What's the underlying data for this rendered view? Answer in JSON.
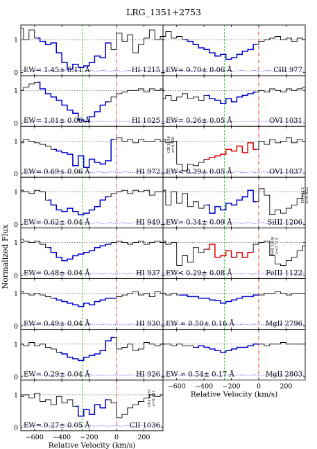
{
  "title": "LRG_1351+2753",
  "ylabel": "Normalized Flux",
  "xlabel": "Relative Velocity (km/s)",
  "chart_data": {
    "type": "line",
    "xlim": [
      -700,
      340
    ],
    "ylim": [
      -0.1,
      1.45
    ],
    "y_ticks": [
      0,
      1
    ],
    "x_ticks": [
      -600,
      -400,
      -200,
      0,
      200
    ],
    "x_tick_labels": [
      "−600",
      "−400",
      "−200",
      "0",
      "200"
    ],
    "reference_lines": [
      {
        "x": -250,
        "style": "green-dashed"
      },
      {
        "x": 0,
        "style": "red-dashdot"
      }
    ],
    "continuum": 1,
    "colors": {
      "spectrum": "#000000",
      "fit": "#0000cc",
      "limit": "#dd0000",
      "error": "#0000ee",
      "green": "#00bb00",
      "red": "#dd0000"
    },
    "panels": [
      {
        "ion": "HI 1215",
        "ew": "EW= 1.45± 0.11 Å",
        "col": 0,
        "row": 0,
        "xlabels": false,
        "x": [
          -700,
          -660,
          -620,
          -580,
          -540,
          -500,
          -460,
          -420,
          -380,
          -340,
          -300,
          -260,
          -220,
          -180,
          -140,
          -100,
          -60,
          -20,
          20,
          60,
          100,
          140,
          180,
          220,
          260,
          300,
          340
        ],
        "flux": [
          1.35,
          1.0,
          1.3,
          1.05,
          0.95,
          0.85,
          0.9,
          0.6,
          0.3,
          0.1,
          0.25,
          0.15,
          0.2,
          0.3,
          0.5,
          0.45,
          0.9,
          0.7,
          1.2,
          0.95,
          1.15,
          0.6,
          0.85,
          1.05,
          1.3,
          1.0,
          1.1
        ],
        "fit": [
          [
            -580,
            -40
          ]
        ],
        "hl": "blue"
      },
      {
        "ion": "HI 1025",
        "ew": "EW= 1.01± 0.06 Å",
        "col": 0,
        "row": 1,
        "xlabels": false,
        "x": [
          -700,
          -660,
          -620,
          -580,
          -540,
          -500,
          -460,
          -420,
          -380,
          -340,
          -300,
          -260,
          -220,
          -180,
          -140,
          -100,
          -60,
          -20,
          20,
          60,
          100,
          140,
          180,
          220,
          260,
          300,
          340
        ],
        "flux": [
          1.0,
          1.1,
          1.2,
          1.25,
          1.05,
          0.9,
          0.8,
          0.7,
          0.55,
          0.4,
          0.3,
          0.1,
          0.05,
          0.2,
          0.35,
          0.55,
          0.65,
          0.8,
          0.9,
          0.95,
          1.0,
          1.0,
          1.05,
          0.95,
          1.05,
          1.0,
          1.05
        ],
        "fit": [
          [
            -580,
            -60
          ]
        ],
        "hl": "blue"
      },
      {
        "ion": "HI 972",
        "ew": "EW= 0.69± 0.06 Å",
        "col": 0,
        "row": 2,
        "xlabels": false,
        "x": [
          -700,
          -660,
          -620,
          -580,
          -540,
          -500,
          -460,
          -420,
          -380,
          -340,
          -300,
          -260,
          -220,
          -180,
          -140,
          -100,
          -60,
          -20,
          20,
          60,
          100,
          140,
          180,
          220,
          260,
          300,
          340
        ],
        "flux": [
          0.95,
          1.05,
          1.0,
          0.95,
          0.9,
          0.85,
          0.75,
          0.7,
          0.65,
          0.6,
          0.25,
          0.55,
          0.2,
          0.45,
          0.35,
          0.3,
          0.4,
          1.05,
          1.1,
          1.0,
          1.05,
          0.95,
          1.05,
          1.0,
          1.0,
          1.05,
          1.0
        ],
        "fit": [
          [
            -460,
            -20
          ]
        ],
        "hl": "blue"
      },
      {
        "ion": "HI 949",
        "ew": "EW= 0.62± 0.04 Å",
        "col": 0,
        "row": 3,
        "xlabels": false,
        "x": [
          -700,
          -660,
          -620,
          -580,
          -540,
          -500,
          -460,
          -420,
          -380,
          -340,
          -300,
          -260,
          -220,
          -180,
          -140,
          -100,
          -60,
          -20,
          20,
          60,
          100,
          140,
          180,
          220,
          260,
          300,
          340
        ],
        "flux": [
          1.05,
          1.0,
          0.95,
          1.05,
          1.0,
          0.75,
          0.6,
          0.45,
          0.4,
          0.5,
          0.4,
          0.3,
          0.35,
          0.45,
          0.55,
          0.75,
          0.85,
          0.95,
          1.0,
          1.05,
          0.95,
          1.05,
          1.0,
          1.05,
          0.9,
          1.0,
          1.0
        ],
        "fit": [
          [
            -500,
            -60
          ]
        ],
        "hl": "blue"
      },
      {
        "ion": "HI 937",
        "ew": "EW= 0.48± 0.04 Å",
        "col": 0,
        "row": 4,
        "xlabels": false,
        "x": [
          -700,
          -660,
          -620,
          -580,
          -540,
          -500,
          -460,
          -420,
          -380,
          -340,
          -300,
          -260,
          -220,
          -180,
          -140,
          -100,
          -60,
          -20,
          20,
          60,
          100,
          140,
          180,
          220,
          260,
          300,
          340
        ],
        "flux": [
          1.1,
          1.05,
          1.0,
          1.05,
          0.95,
          0.85,
          0.7,
          0.55,
          0.45,
          0.5,
          0.6,
          0.65,
          0.7,
          0.75,
          0.85,
          0.9,
          0.95,
          1.0,
          1.05,
          1.0,
          0.95,
          1.0,
          1.05,
          0.95,
          1.0,
          1.05,
          1.0
        ],
        "fit": [
          [
            -500,
            -40
          ]
        ],
        "hl": "blue"
      },
      {
        "ion": "HI 930",
        "ew": "EW= 0.49± 0.04 Å",
        "col": 0,
        "row": 5,
        "xlabels": false,
        "x": [
          -700,
          -660,
          -620,
          -580,
          -540,
          -500,
          -460,
          -420,
          -380,
          -340,
          -300,
          -260,
          -220,
          -180,
          -140,
          -100,
          -60,
          -20,
          20,
          60,
          100,
          140,
          180,
          220,
          260,
          300,
          340
        ],
        "flux": [
          1.05,
          1.0,
          0.95,
          1.0,
          0.95,
          0.9,
          0.85,
          0.8,
          0.75,
          0.7,
          0.65,
          0.6,
          0.7,
          0.65,
          0.75,
          0.8,
          0.85,
          0.85,
          0.9,
          0.95,
          1.0,
          1.05,
          0.95,
          1.0,
          0.9,
          1.05,
          1.0
        ],
        "fit": [
          [
            -460,
            0
          ]
        ],
        "hl": "blue"
      },
      {
        "ion": "HI 926",
        "ew": "EW= 0.29± 0.04 Å",
        "col": 0,
        "row": 6,
        "xlabels": false,
        "x": [
          -700,
          -660,
          -620,
          -580,
          -540,
          -500,
          -460,
          -420,
          -380,
          -340,
          -300,
          -260,
          -220,
          -180,
          -140,
          -100,
          -60,
          -20,
          20,
          60,
          100,
          140,
          180,
          220,
          260,
          300,
          340
        ],
        "flux": [
          1.0,
          0.95,
          1.05,
          0.95,
          1.0,
          0.9,
          0.85,
          0.75,
          0.7,
          0.6,
          0.55,
          0.5,
          0.6,
          0.65,
          0.7,
          0.8,
          1.1,
          1.2,
          0.85,
          0.9,
          1.0,
          0.8,
          0.85,
          1.05,
          1.0,
          0.95,
          1.0
        ],
        "fit": [
          [
            -420,
            -20
          ]
        ],
        "hl": "blue"
      },
      {
        "ion": "CII 1036",
        "ew": "EW= 0.27± 0.05 Å",
        "col": 0,
        "row": 7,
        "xlabels": true,
        "x": [
          -700,
          -660,
          -620,
          -580,
          -540,
          -500,
          -460,
          -420,
          -380,
          -340,
          -300,
          -260,
          -220,
          -180,
          -140,
          -100,
          -60,
          -20,
          20,
          60,
          100,
          140,
          180,
          220,
          260,
          300,
          340
        ],
        "flux": [
          0.95,
          1.0,
          0.9,
          1.05,
          0.8,
          0.85,
          0.7,
          0.95,
          0.75,
          0.85,
          0.65,
          0.35,
          0.55,
          0.4,
          0.7,
          0.6,
          0.85,
          0.75,
          0.3,
          0.4,
          0.6,
          0.7,
          0.8,
          0.9,
          1.0,
          0.95,
          1.0
        ],
        "fit": [
          [
            -300,
            -60
          ]
        ],
        "hl": "blue",
        "note": "OVI 1037",
        "note2": "z=0.431",
        "notex": 250
      },
      {
        "ion": "CIII 977",
        "ew": "EW= 0.70± 0.06 Å",
        "col": 1,
        "row": 0,
        "xlabels": false,
        "x": [
          -700,
          -660,
          -620,
          -580,
          -540,
          -500,
          -460,
          -420,
          -380,
          -340,
          -300,
          -260,
          -220,
          -180,
          -140,
          -100,
          -60,
          -20,
          20,
          60,
          100,
          140,
          180,
          220,
          260,
          300,
          340
        ],
        "flux": [
          1.1,
          1.25,
          1.05,
          1.1,
          1.0,
          0.95,
          0.85,
          0.75,
          0.7,
          0.6,
          0.5,
          0.55,
          0.4,
          0.45,
          0.55,
          0.65,
          0.7,
          0.85,
          0.95,
          1.0,
          1.05,
          1.1,
          1.0,
          1.05,
          0.95,
          1.05,
          1.0
        ],
        "fit": [
          [
            -540,
            -20
          ]
        ],
        "hl": "blue"
      },
      {
        "ion": "OVI 1031",
        "ew": "EW= 0.26± 0.05 Å",
        "col": 1,
        "row": 1,
        "xlabels": false,
        "x": [
          -700,
          -660,
          -620,
          -580,
          -540,
          -500,
          -460,
          -420,
          -380,
          -340,
          -300,
          -260,
          -220,
          -180,
          -140,
          -100,
          -60,
          -20,
          20,
          60,
          100,
          140,
          180,
          220,
          260,
          300,
          340
        ],
        "flux": [
          0.75,
          0.85,
          0.7,
          0.8,
          0.9,
          0.75,
          0.8,
          0.7,
          0.85,
          0.75,
          0.7,
          0.6,
          0.75,
          0.65,
          0.8,
          0.85,
          0.9,
          0.95,
          1.0,
          0.95,
          1.05,
          1.0,
          0.95,
          1.05,
          1.0,
          1.05,
          1.1
        ],
        "fit": [
          [
            -380,
            -20
          ]
        ],
        "hl": "blue"
      },
      {
        "ion": "OVI 1037",
        "ew": "EW< 0.39± 0.05 Å",
        "col": 1,
        "row": 2,
        "xlabels": false,
        "x": [
          -700,
          -660,
          -620,
          -580,
          -540,
          -500,
          -460,
          -420,
          -380,
          -340,
          -300,
          -260,
          -220,
          -180,
          -140,
          -100,
          -60,
          -20,
          20,
          60,
          100,
          140,
          180,
          220,
          260,
          300,
          340
        ],
        "flux": [
          1.05,
          0.95,
          1.0,
          0.3,
          0.1,
          0.3,
          0.25,
          0.35,
          0.45,
          0.5,
          0.55,
          0.6,
          0.75,
          0.7,
          0.85,
          0.65,
          0.95,
          0.75,
          1.0,
          0.9,
          1.05,
          0.95,
          1.0,
          1.1,
          0.95,
          1.05,
          1.0
        ],
        "fit": [
          [
            -380,
            -20
          ]
        ],
        "hl": "red",
        "note": "CII 1036",
        "note2": "z=0.430",
        "notex": -650
      },
      {
        "ion": "SiIII 1206",
        "ew": "EW= 0.34± 0.09 Å",
        "col": 1,
        "row": 3,
        "xlabels": false,
        "x": [
          -700,
          -660,
          -620,
          -580,
          -540,
          -500,
          -460,
          -420,
          -380,
          -340,
          -300,
          -260,
          -220,
          -180,
          -140,
          -100,
          -60,
          -20,
          20,
          60,
          100,
          140,
          180,
          220,
          260,
          300,
          340
        ],
        "flux": [
          1.05,
          0.6,
          1.0,
          0.65,
          0.95,
          0.55,
          0.7,
          0.5,
          0.6,
          0.35,
          0.55,
          0.45,
          0.65,
          0.6,
          0.75,
          0.85,
          1.05,
          0.7,
          1.1,
          0.9,
          0.3,
          0.45,
          0.35,
          0.5,
          0.6,
          0.8,
          0.95
        ],
        "fit": [
          [
            -380,
            -20
          ]
        ],
        "hl": "blue",
        "note": "HI 1215",
        "note2": "z=0.422",
        "notex": 330
      },
      {
        "ion": "FeIII 1122",
        "ew": "EW< 0.29± 0.08 Å",
        "col": 1,
        "row": 4,
        "xlabels": false,
        "x": [
          -700,
          -660,
          -620,
          -580,
          -540,
          -500,
          -460,
          -420,
          -380,
          -340,
          -300,
          -260,
          -220,
          -180,
          -140,
          -100,
          -60,
          -20,
          20,
          60,
          100,
          140,
          180,
          220,
          260,
          300,
          340
        ],
        "flux": [
          1.05,
          0.95,
          1.0,
          0.3,
          0.6,
          0.4,
          0.85,
          0.7,
          0.8,
          0.95,
          0.55,
          0.6,
          0.75,
          0.55,
          0.7,
          0.55,
          0.7,
          0.95,
          1.0,
          1.05,
          0.6,
          0.35,
          0.3,
          0.45,
          0.55,
          0.75,
          0.9
        ],
        "fit": [
          [
            -380,
            -40
          ]
        ],
        "hl": "red",
        "note": "FeII 1608",
        "note2": "z=0.713",
        "notex": 110
      },
      {
        "ion": "MgII 2796",
        "ew": "EW =  0.50± 0.16 Å",
        "col": 1,
        "row": 5,
        "xlabels": false,
        "x": [
          -700,
          -660,
          -620,
          -580,
          -540,
          -500,
          -460,
          -420,
          -380,
          -340,
          -300,
          -260,
          -220,
          -180,
          -140,
          -100,
          -60,
          -20,
          20,
          60,
          100,
          140,
          180,
          220,
          260,
          300,
          340
        ],
        "flux": [
          1.0,
          0.95,
          1.0,
          0.95,
          0.95,
          0.9,
          0.9,
          0.85,
          0.85,
          0.8,
          0.78,
          0.7,
          0.75,
          0.8,
          0.85,
          0.9,
          0.9,
          0.95,
          0.95,
          1.0,
          1.0,
          1.05,
          1.0,
          0.95,
          1.0,
          1.0,
          1.0
        ],
        "fit": [
          [
            -580,
            0
          ]
        ],
        "hl": "blue"
      },
      {
        "ion": "MgII 2803",
        "ew": "EW =  0.54± 0.17 Å",
        "col": 1,
        "row": 6,
        "xlabels": true,
        "x": [
          -700,
          -660,
          -620,
          -580,
          -540,
          -500,
          -460,
          -420,
          -380,
          -340,
          -300,
          -260,
          -220,
          -180,
          -140,
          -100,
          -60,
          -20,
          20,
          60,
          100,
          140,
          180,
          220,
          260,
          300,
          340
        ],
        "flux": [
          1.0,
          1.0,
          0.95,
          1.0,
          0.95,
          0.95,
          0.9,
          0.95,
          0.9,
          0.85,
          0.8,
          0.75,
          0.8,
          0.85,
          0.9,
          0.9,
          0.95,
          1.0,
          1.0,
          0.95,
          1.0,
          1.0,
          1.05,
          1.0,
          1.0,
          1.0,
          1.0
        ],
        "fit": [
          [
            -460,
            0
          ]
        ],
        "hl": "blue"
      }
    ]
  }
}
